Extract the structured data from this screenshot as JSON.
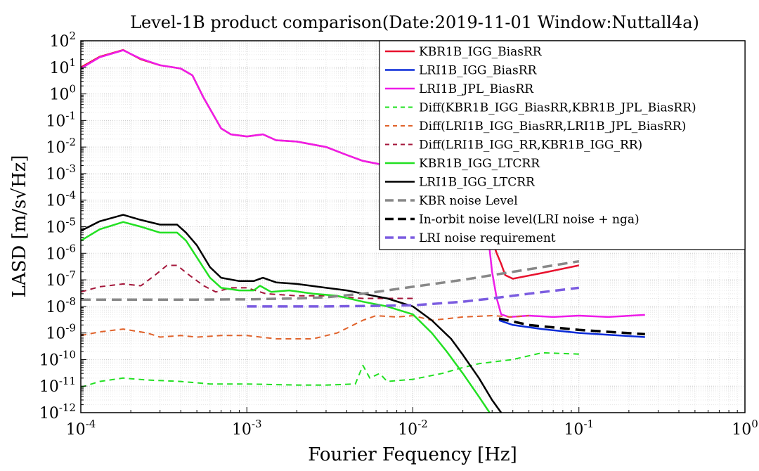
{
  "chart_data": {
    "type": "line",
    "title": "Level-1B product comparison(Date:2019-11-01 Window:Nuttall4a)",
    "xlabel": "Fourier Fequency [Hz]",
    "ylabel": "LASD [m/s√Hz]",
    "xscale": "log",
    "yscale": "log",
    "xlim": [
      0.0001,
      1
    ],
    "ylim": [
      1e-12,
      100
    ],
    "grid": true,
    "legend_position": "top-right",
    "x_ticks": [
      {
        "base": "10",
        "exp": "-4"
      },
      {
        "base": "10",
        "exp": "-3"
      },
      {
        "base": "10",
        "exp": "-2"
      },
      {
        "base": "10",
        "exp": "-1"
      },
      {
        "base": "10",
        "exp": "0"
      }
    ],
    "y_ticks": [
      {
        "base": "10",
        "exp": "2"
      },
      {
        "base": "10",
        "exp": "1"
      },
      {
        "base": "10",
        "exp": "0"
      },
      {
        "base": "10",
        "exp": "-1"
      },
      {
        "base": "10",
        "exp": "-2"
      },
      {
        "base": "10",
        "exp": "-3"
      },
      {
        "base": "10",
        "exp": "-4"
      },
      {
        "base": "10",
        "exp": "-5"
      },
      {
        "base": "10",
        "exp": "-6"
      },
      {
        "base": "10",
        "exp": "-7"
      },
      {
        "base": "10",
        "exp": "-8"
      },
      {
        "base": "10",
        "exp": "-9"
      },
      {
        "base": "10",
        "exp": "-10"
      },
      {
        "base": "10",
        "exp": "-11"
      },
      {
        "base": "10",
        "exp": "-12"
      }
    ],
    "series": [
      {
        "name": "KBR1B_IGG_BiasRR",
        "color": "#e8112d",
        "dash": "solid",
        "width": 2.5,
        "points": [
          [
            0.0001,
            10
          ],
          [
            0.00013,
            25
          ],
          [
            0.00018,
            45
          ],
          [
            0.00023,
            20
          ],
          [
            0.0003,
            12
          ],
          [
            0.0004,
            9
          ],
          [
            0.00047,
            5
          ],
          [
            0.00055,
            0.7
          ],
          [
            0.0007,
            0.05
          ],
          [
            0.0008,
            0.03
          ],
          [
            0.001,
            0.025
          ],
          [
            0.00125,
            0.03
          ],
          [
            0.0015,
            0.018
          ],
          [
            0.002,
            0.016
          ],
          [
            0.003,
            0.01
          ],
          [
            0.004,
            0.005
          ],
          [
            0.005,
            0.003
          ],
          [
            0.007,
            0.002
          ],
          [
            0.01,
            0.001
          ],
          [
            0.015,
            0.0005
          ],
          [
            0.02,
            0.0002
          ],
          [
            0.025,
            4e-05
          ],
          [
            0.028,
            1e-05
          ],
          [
            0.032,
            1e-06
          ],
          [
            0.034,
            4e-07
          ],
          [
            0.036,
            1.5e-07
          ],
          [
            0.04,
            1.1e-07
          ],
          [
            0.06,
            1.8e-07
          ],
          [
            0.1,
            3.5e-07
          ]
        ]
      },
      {
        "name": "LRI1B_IGG_BiasRR",
        "color": "#0a2bd8",
        "dash": "solid",
        "width": 2.5,
        "points": [
          [
            0.033,
            3e-09
          ],
          [
            0.04,
            2e-09
          ],
          [
            0.06,
            1.4e-09
          ],
          [
            0.1,
            1e-09
          ],
          [
            0.15,
            8.5e-10
          ],
          [
            0.25,
            7e-10
          ]
        ]
      },
      {
        "name": "LRI1B_JPL_BiasRR",
        "color": "#ee1ce8",
        "dash": "solid",
        "width": 2.5,
        "points": [
          [
            0.0001,
            9
          ],
          [
            0.00013,
            24
          ],
          [
            0.00018,
            44
          ],
          [
            0.00023,
            21
          ],
          [
            0.0003,
            12
          ],
          [
            0.0004,
            9
          ],
          [
            0.00047,
            5
          ],
          [
            0.00055,
            0.7
          ],
          [
            0.0007,
            0.05
          ],
          [
            0.0008,
            0.03
          ],
          [
            0.001,
            0.025
          ],
          [
            0.00125,
            0.03
          ],
          [
            0.0015,
            0.018
          ],
          [
            0.002,
            0.016
          ],
          [
            0.003,
            0.01
          ],
          [
            0.004,
            0.005
          ],
          [
            0.005,
            0.003
          ],
          [
            0.007,
            0.002
          ],
          [
            0.01,
            0.001
          ],
          [
            0.015,
            0.0005
          ],
          [
            0.02,
            0.0002
          ],
          [
            0.025,
            4e-05
          ],
          [
            0.028,
            1e-05
          ],
          [
            0.03,
            2e-07
          ],
          [
            0.032,
            2e-08
          ],
          [
            0.034,
            5e-09
          ],
          [
            0.038,
            4e-09
          ],
          [
            0.05,
            4.5e-09
          ],
          [
            0.07,
            4e-09
          ],
          [
            0.1,
            4.5e-09
          ],
          [
            0.15,
            4e-09
          ],
          [
            0.25,
            4.8e-09
          ]
        ]
      },
      {
        "name": "Diff(KBR1B_IGG_BiasRR,KBR1B_JPL_BiasRR)",
        "color": "#22e022",
        "dash": "8,6",
        "width": 2,
        "points": [
          [
            0.0001,
            9e-12
          ],
          [
            0.00013,
            1.5e-11
          ],
          [
            0.00018,
            2e-11
          ],
          [
            0.00025,
            1.7e-11
          ],
          [
            0.0004,
            1.5e-11
          ],
          [
            0.0006,
            1.2e-11
          ],
          [
            0.001,
            1.2e-11
          ],
          [
            0.002,
            1.1e-11
          ],
          [
            0.003,
            1.1e-11
          ],
          [
            0.0045,
            1.2e-11
          ],
          [
            0.005,
            6e-11
          ],
          [
            0.0055,
            2e-11
          ],
          [
            0.0063,
            3e-11
          ],
          [
            0.007,
            1.5e-11
          ],
          [
            0.01,
            1.8e-11
          ],
          [
            0.015,
            3e-11
          ],
          [
            0.02,
            5e-11
          ],
          [
            0.025,
            7e-11
          ],
          [
            0.04,
            1e-10
          ],
          [
            0.06,
            1.8e-10
          ],
          [
            0.1,
            1.6e-10
          ]
        ]
      },
      {
        "name": "Diff(LRI1B_IGG_BiasRR,LRI1B_JPL_BiasRR)",
        "color": "#e0622a",
        "dash": "8,6",
        "width": 2,
        "points": [
          [
            0.0001,
            8e-10
          ],
          [
            0.00013,
            1.1e-09
          ],
          [
            0.00018,
            1.4e-09
          ],
          [
            0.00025,
            1e-09
          ],
          [
            0.0003,
            7e-10
          ],
          [
            0.0004,
            8e-10
          ],
          [
            0.0005,
            7e-10
          ],
          [
            0.0007,
            8e-10
          ],
          [
            0.001,
            8e-10
          ],
          [
            0.0015,
            6e-10
          ],
          [
            0.0025,
            6e-10
          ],
          [
            0.0035,
            1e-09
          ],
          [
            0.005,
            3e-09
          ],
          [
            0.006,
            4.5e-09
          ],
          [
            0.008,
            4e-09
          ],
          [
            0.01,
            4.5e-09
          ],
          [
            0.013,
            3e-09
          ],
          [
            0.02,
            4e-09
          ],
          [
            0.03,
            4.5e-09
          ],
          [
            0.04,
            4e-09
          ],
          [
            0.05,
            4.5e-09
          ]
        ]
      },
      {
        "name": "Diff(LRI1B_IGG_RR,KBR1B_IGG_RR)",
        "color": "#a4163a",
        "dash": "8,6",
        "width": 2,
        "points": [
          [
            0.0001,
            3.5e-08
          ],
          [
            0.00013,
            5.5e-08
          ],
          [
            0.00018,
            7e-08
          ],
          [
            0.00023,
            6e-08
          ],
          [
            0.00028,
            1.5e-07
          ],
          [
            0.00033,
            3.5e-07
          ],
          [
            0.00038,
            3.5e-07
          ],
          [
            0.00045,
            1.5e-07
          ],
          [
            0.00055,
            6e-08
          ],
          [
            0.00065,
            3.5e-08
          ],
          [
            0.0008,
            5e-08
          ],
          [
            0.001,
            5e-08
          ],
          [
            0.0013,
            3e-08
          ],
          [
            0.002,
            2.5e-08
          ],
          [
            0.003,
            2.5e-08
          ],
          [
            0.005,
            2e-08
          ],
          [
            0.008,
            2e-08
          ],
          [
            0.01,
            2e-08
          ]
        ]
      },
      {
        "name": "KBR1B_IGG_LTCRR",
        "color": "#22e022",
        "dash": "solid",
        "width": 2.5,
        "points": [
          [
            0.0001,
            3e-06
          ],
          [
            0.00013,
            8e-06
          ],
          [
            0.00018,
            1.5e-05
          ],
          [
            0.00023,
            1e-05
          ],
          [
            0.0003,
            6e-06
          ],
          [
            0.00038,
            6e-06
          ],
          [
            0.00043,
            3e-06
          ],
          [
            0.0005,
            7e-07
          ],
          [
            0.0006,
            1.2e-07
          ],
          [
            0.0007,
            5e-08
          ],
          [
            0.0009,
            4e-08
          ],
          [
            0.0011,
            4e-08
          ],
          [
            0.0012,
            6e-08
          ],
          [
            0.0014,
            3.5e-08
          ],
          [
            0.0018,
            4e-08
          ],
          [
            0.0025,
            3e-08
          ],
          [
            0.0035,
            2.5e-08
          ],
          [
            0.005,
            1.5e-08
          ],
          [
            0.007,
            1e-08
          ],
          [
            0.01,
            5e-09
          ],
          [
            0.013,
            1e-09
          ],
          [
            0.016,
            2e-10
          ],
          [
            0.02,
            3e-11
          ],
          [
            0.025,
            4e-12
          ],
          [
            0.029,
            1e-12
          ]
        ]
      },
      {
        "name": "LRI1B_IGG_LTCRR",
        "color": "#000000",
        "dash": "solid",
        "width": 2.5,
        "points": [
          [
            0.0001,
            7e-06
          ],
          [
            0.00013,
            1.6e-05
          ],
          [
            0.00018,
            2.8e-05
          ],
          [
            0.00023,
            1.8e-05
          ],
          [
            0.0003,
            1.2e-05
          ],
          [
            0.00038,
            1.2e-05
          ],
          [
            0.00043,
            6e-06
          ],
          [
            0.0005,
            2e-06
          ],
          [
            0.0006,
            3e-07
          ],
          [
            0.0007,
            1.2e-07
          ],
          [
            0.0009,
            9e-08
          ],
          [
            0.0011,
            9e-08
          ],
          [
            0.00125,
            1.2e-07
          ],
          [
            0.0015,
            8e-08
          ],
          [
            0.002,
            7e-08
          ],
          [
            0.003,
            5e-08
          ],
          [
            0.004,
            4e-08
          ],
          [
            0.005,
            3e-08
          ],
          [
            0.007,
            2e-08
          ],
          [
            0.01,
            1e-08
          ],
          [
            0.013,
            3e-09
          ],
          [
            0.017,
            6e-10
          ],
          [
            0.02,
            1.5e-10
          ],
          [
            0.025,
            2e-11
          ],
          [
            0.03,
            3e-12
          ],
          [
            0.034,
            1e-12
          ]
        ]
      },
      {
        "name": "KBR noise Level",
        "color": "#888888",
        "dash": "14,8",
        "width": 3.5,
        "points": [
          [
            0.0001,
            1.8e-08
          ],
          [
            0.0002,
            1.8e-08
          ],
          [
            0.0005,
            1.8e-08
          ],
          [
            0.001,
            1.85e-08
          ],
          [
            0.002,
            2e-08
          ],
          [
            0.003,
            2.2e-08
          ],
          [
            0.005,
            3e-08
          ],
          [
            0.007,
            4e-08
          ],
          [
            0.01,
            5.5e-08
          ],
          [
            0.02,
            1e-07
          ],
          [
            0.03,
            1.5e-07
          ],
          [
            0.05,
            2.5e-07
          ],
          [
            0.1,
            5e-07
          ]
        ]
      },
      {
        "name": "In-orbit noise level(LRI noise + nga)",
        "color": "#000000",
        "dash": "14,8",
        "width": 3.5,
        "points": [
          [
            0.033,
            3.5e-09
          ],
          [
            0.05,
            2e-09
          ],
          [
            0.1,
            1.3e-09
          ],
          [
            0.25,
            9e-10
          ]
        ]
      },
      {
        "name": "LRI noise requirement",
        "color": "#7b5ce0",
        "dash": "14,8",
        "width": 3.5,
        "points": [
          [
            0.001,
            1e-08
          ],
          [
            0.003,
            1e-08
          ],
          [
            0.006,
            1.05e-08
          ],
          [
            0.01,
            1.1e-08
          ],
          [
            0.02,
            1.5e-08
          ],
          [
            0.03,
            2e-08
          ],
          [
            0.05,
            3e-08
          ],
          [
            0.1,
            5e-08
          ]
        ]
      }
    ]
  }
}
